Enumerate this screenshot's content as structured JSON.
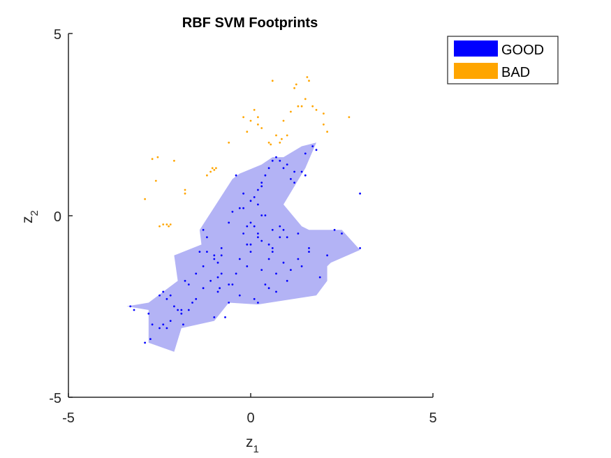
{
  "chart_data": {
    "type": "scatter",
    "title": "RBF SVM Footprints",
    "xlabel": "z",
    "xlabel_sub": "1",
    "ylabel": "z",
    "ylabel_sub": "2",
    "xlim": [
      -5,
      5
    ],
    "ylim": [
      -5,
      5
    ],
    "xticks": [
      "-5",
      "0",
      "5"
    ],
    "yticks": [
      "-5",
      "0",
      "5"
    ],
    "grid": false,
    "legend_position": "top-right outside",
    "legend": [
      {
        "name": "GOOD",
        "color": "#0000ff"
      },
      {
        "name": "BAD",
        "color": "#ffa500"
      }
    ],
    "footprint": {
      "name": "GOOD",
      "fill_color": "#b3b3f5",
      "polygon": [
        [
          -3.4,
          -2.5
        ],
        [
          -2.8,
          -2.6
        ],
        [
          -2.8,
          -3.5
        ],
        [
          -2.1,
          -3.75
        ],
        [
          -1.9,
          -3.1
        ],
        [
          -1.0,
          -2.9
        ],
        [
          -0.6,
          -2.4
        ],
        [
          0.2,
          -2.45
        ],
        [
          1.8,
          -2.2
        ],
        [
          2.1,
          -1.8
        ],
        [
          2.1,
          -1.4
        ],
        [
          2.2,
          -1.3
        ],
        [
          3.0,
          -0.95
        ],
        [
          2.5,
          -0.4
        ],
        [
          1.6,
          -0.4
        ],
        [
          1.4,
          -0.3
        ],
        [
          0.9,
          0.3
        ],
        [
          1.5,
          1.3
        ],
        [
          1.8,
          2.0
        ],
        [
          1.4,
          1.9
        ],
        [
          0.9,
          1.6
        ],
        [
          0.6,
          1.6
        ],
        [
          0.3,
          1.4
        ],
        [
          -0.3,
          1.15
        ],
        [
          -0.5,
          1.0
        ],
        [
          -1.4,
          -0.4
        ],
        [
          -1.35,
          -0.8
        ],
        [
          -2.1,
          -1.1
        ],
        [
          -2.0,
          -1.8
        ],
        [
          -2.4,
          -2.1
        ],
        [
          -2.8,
          -2.4
        ],
        [
          -3.4,
          -2.5
        ]
      ]
    },
    "series": [
      {
        "name": "GOOD",
        "color": "#0000ff",
        "x": [
          -3.3,
          -3.2,
          -2.9,
          -2.8,
          -2.75,
          -2.5,
          -2.4,
          -2.3,
          -2.2,
          -2.4,
          -2.3,
          -2.0,
          -1.9,
          -1.85,
          -1.8,
          -1.7,
          -1.5,
          -1.4,
          -1.3,
          -1.2,
          -1.0,
          -0.9,
          -0.8,
          -0.85,
          -0.9,
          -1.0,
          -0.7,
          -0.6,
          -0.4,
          -0.3,
          -0.1,
          0.0,
          -0.2,
          0.1,
          0.2,
          0.3,
          0.4,
          0.5,
          0.6,
          0.7,
          0.8,
          0.9,
          1.0,
          1.2,
          1.5,
          1.7,
          1.8,
          2.3,
          2.5,
          3.0,
          3.0,
          0.0,
          0.2,
          0.1,
          0.0,
          -0.1,
          0.3,
          0.5,
          0.8,
          0.6,
          0.4,
          0.2,
          -0.2,
          -0.3,
          0.3,
          0.6,
          0.9,
          1.1,
          1.3,
          1.6,
          2.1,
          1.4,
          1.0,
          0.7,
          0.5,
          0.2,
          -0.5,
          -0.8,
          -1.1,
          -1.3,
          -1.5,
          -1.7,
          -2.1,
          -2.5,
          -2.7,
          -2.2,
          -1.9,
          -1.6,
          -1.3,
          -0.9,
          -0.6,
          -0.3,
          0.1,
          0.4,
          0.7,
          1.0,
          1.3,
          1.6,
          1.9,
          0.0,
          0.3,
          -0.4,
          -0.6,
          0.8,
          1.2,
          1.5,
          0.2,
          -0.1,
          0.5,
          0.9,
          1.1,
          1.4,
          0.6,
          0.3,
          -0.2,
          -0.5,
          -0.8,
          -1.0,
          -1.2
        ],
        "y": [
          -2.5,
          -2.6,
          -3.5,
          -2.7,
          -3.4,
          -3.1,
          -3.0,
          -3.1,
          -2.2,
          -2.1,
          -2.3,
          -2.6,
          -2.6,
          -3.0,
          -1.8,
          -1.9,
          -1.6,
          -1.0,
          -0.4,
          -0.6,
          -1.1,
          -1.3,
          -1.1,
          -2.0,
          -2.1,
          -2.8,
          -2.8,
          -2.4,
          -1.6,
          -1.2,
          -0.8,
          -0.2,
          0.2,
          0.5,
          0.7,
          0.8,
          1.1,
          1.3,
          1.5,
          1.6,
          1.5,
          1.3,
          1.4,
          1.2,
          1.7,
          1.9,
          1.8,
          -0.4,
          -0.5,
          -0.9,
          0.6,
          -0.8,
          -0.5,
          -0.3,
          -1.0,
          -1.4,
          -1.5,
          -1.2,
          -0.6,
          -0.4,
          0.0,
          0.3,
          0.6,
          0.2,
          -0.7,
          -1.0,
          -1.3,
          -1.5,
          -1.2,
          -0.9,
          -1.1,
          -1.4,
          -1.8,
          -2.1,
          -2.0,
          -2.4,
          -1.9,
          -1.6,
          -1.8,
          -1.4,
          -2.3,
          -2.6,
          -2.5,
          -2.2,
          -3.0,
          -2.9,
          -2.7,
          -2.4,
          -2.0,
          -1.7,
          -1.9,
          -2.2,
          -2.3,
          -1.9,
          -1.6,
          -0.6,
          -0.5,
          -1.0,
          -1.7,
          0.4,
          0.9,
          1.1,
          -0.2,
          -0.3,
          0.9,
          1.1,
          -0.6,
          -0.3,
          -0.8,
          -0.4,
          1.0,
          1.2,
          -0.9,
          0.0,
          -0.5,
          0.1,
          -0.9,
          -1.2,
          -1.0
        ]
      },
      {
        "name": "BAD",
        "color": "#ffa500",
        "x": [
          -2.9,
          -2.7,
          -2.6,
          -2.55,
          -2.5,
          -2.4,
          -2.3,
          -2.25,
          -2.2,
          -2.1,
          -1.8,
          -1.8,
          -1.2,
          -1.1,
          -1.05,
          -1.0,
          -0.95,
          -0.6,
          -0.2,
          -0.1,
          0.0,
          0.1,
          0.2,
          0.2,
          0.3,
          0.5,
          0.55,
          0.6,
          0.7,
          0.8,
          0.85,
          0.9,
          1.0,
          1.1,
          1.2,
          1.25,
          1.3,
          1.4,
          1.5,
          1.55,
          1.6,
          1.7,
          1.8,
          2.0,
          2.0,
          2.1,
          2.7
        ],
        "y": [
          0.45,
          1.55,
          0.95,
          1.6,
          -0.3,
          -0.25,
          -0.25,
          -0.3,
          -0.25,
          1.5,
          0.7,
          0.6,
          1.1,
          1.2,
          1.3,
          1.25,
          1.3,
          2.0,
          2.7,
          2.3,
          2.6,
          2.9,
          2.5,
          2.7,
          2.4,
          2.0,
          1.95,
          3.7,
          2.2,
          2.0,
          2.1,
          2.6,
          2.2,
          2.85,
          3.5,
          3.6,
          3.0,
          3.0,
          3.2,
          3.8,
          3.7,
          3.0,
          2.9,
          2.5,
          2.8,
          2.3,
          2.7
        ]
      }
    ]
  }
}
